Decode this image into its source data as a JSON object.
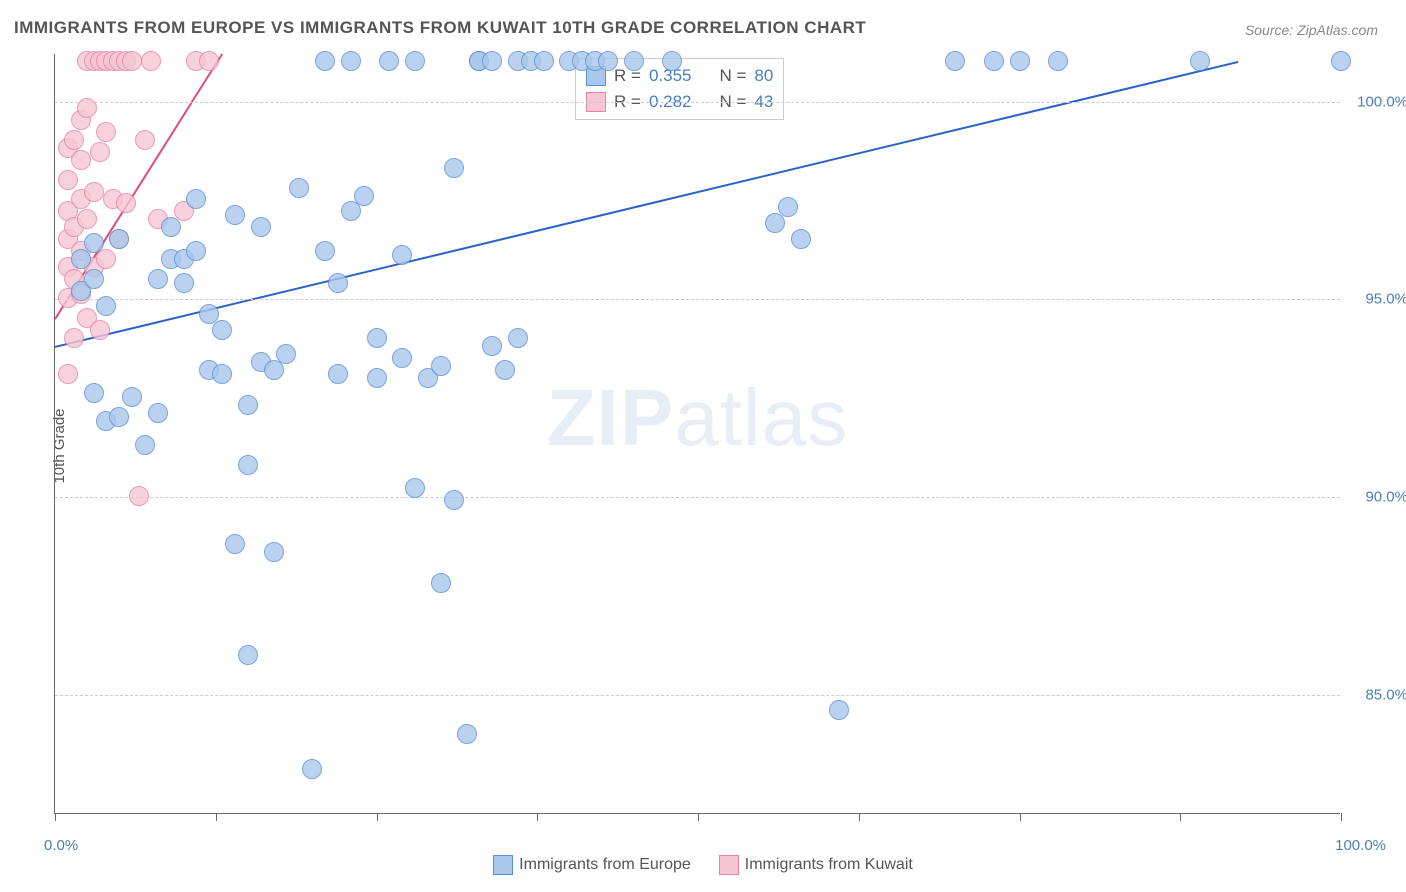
{
  "title": "IMMIGRANTS FROM EUROPE VS IMMIGRANTS FROM KUWAIT 10TH GRADE CORRELATION CHART",
  "source_label": "Source: ",
  "source_name": "ZipAtlas.com",
  "ylabel": "10th Grade",
  "watermark_a": "ZIP",
  "watermark_b": "atlas",
  "chart": {
    "type": "scatter",
    "background_color": "#ffffff",
    "grid_color": "#cccccc",
    "axis_color": "#666666",
    "xlim": [
      0,
      100
    ],
    "ylim": [
      82,
      101.2
    ],
    "x_ticks": [
      0,
      12.5,
      25,
      37.5,
      50,
      62.5,
      75,
      87.5,
      100
    ],
    "x_tick_labels": {
      "0": "0.0%",
      "100": "100.0%"
    },
    "y_ticks": [
      85.0,
      90.0,
      95.0,
      100.0
    ],
    "y_tick_labels": [
      "85.0%",
      "90.0%",
      "95.0%",
      "100.0%"
    ],
    "marker_radius": 10,
    "marker_opacity": 0.35,
    "line_width": 2
  },
  "series": {
    "europe": {
      "label": "Immigrants from Europe",
      "fill_color": "#a9c8ec",
      "stroke_color": "#5b8fd6",
      "line_color": "#2a63c4",
      "R_label": "R = ",
      "R_value": "0.355",
      "N_label": "N = ",
      "N_value": "80",
      "trend": {
        "x1": 0,
        "y1": 93.8,
        "x2": 92,
        "y2": 101.0
      },
      "points": [
        [
          2,
          95.2
        ],
        [
          2,
          96.0
        ],
        [
          3,
          92.6
        ],
        [
          3,
          95.5
        ],
        [
          3,
          96.4
        ],
        [
          4,
          91.9
        ],
        [
          4,
          94.8
        ],
        [
          5,
          92.0
        ],
        [
          8,
          92.1
        ],
        [
          8,
          95.5
        ],
        [
          9,
          96.0
        ],
        [
          9,
          96.8
        ],
        [
          10,
          95.4
        ],
        [
          10,
          96.0
        ],
        [
          11,
          96.2
        ],
        [
          12,
          93.2
        ],
        [
          12,
          94.6
        ],
        [
          13,
          94.2
        ],
        [
          13,
          93.1
        ],
        [
          14,
          97.1
        ],
        [
          15,
          90.8
        ],
        [
          15,
          86.0
        ],
        [
          15,
          92.3
        ],
        [
          16,
          93.4
        ],
        [
          16,
          96.8
        ],
        [
          17,
          93.2
        ],
        [
          17,
          88.6
        ],
        [
          18,
          93.6
        ],
        [
          20,
          83.1
        ],
        [
          21,
          96.2
        ],
        [
          21,
          101.0
        ],
        [
          22,
          95.4
        ],
        [
          22,
          93.1
        ],
        [
          23,
          97.2
        ],
        [
          24,
          97.6
        ],
        [
          25,
          94.0
        ],
        [
          25,
          93.0
        ],
        [
          26,
          101.0
        ],
        [
          27,
          96.1
        ],
        [
          27,
          93.5
        ],
        [
          28,
          90.2
        ],
        [
          28,
          101.0
        ],
        [
          29,
          93.0
        ],
        [
          30,
          93.3
        ],
        [
          30,
          87.8
        ],
        [
          31,
          89.9
        ],
        [
          31,
          98.3
        ],
        [
          32,
          84.0
        ],
        [
          33,
          101.0
        ],
        [
          33,
          101.0
        ],
        [
          34,
          93.8
        ],
        [
          34,
          101.0
        ],
        [
          35,
          93.2
        ],
        [
          36,
          101.0
        ],
        [
          36,
          94.0
        ],
        [
          37,
          101.0
        ],
        [
          38,
          101.0
        ],
        [
          40,
          101.0
        ],
        [
          41,
          101.0
        ],
        [
          42,
          101.0
        ],
        [
          43,
          101.0
        ],
        [
          45,
          101.0
        ],
        [
          56,
          96.9
        ],
        [
          57,
          97.3
        ],
        [
          58,
          96.5
        ],
        [
          61,
          84.6
        ],
        [
          70,
          101.0
        ],
        [
          73,
          101.0
        ],
        [
          75,
          101.0
        ],
        [
          78,
          101.0
        ],
        [
          89,
          101.0
        ],
        [
          100,
          101.0
        ],
        [
          7,
          91.3
        ],
        [
          6,
          92.5
        ],
        [
          19,
          97.8
        ],
        [
          23,
          101.0
        ],
        [
          11,
          97.5
        ],
        [
          14,
          88.8
        ],
        [
          5,
          96.5
        ],
        [
          48,
          101.0
        ]
      ]
    },
    "kuwait": {
      "label": "Immigrants from Kuwait",
      "fill_color": "#f6c6d4",
      "stroke_color": "#e584a5",
      "line_color": "#e14a7a",
      "R_label": "R = ",
      "R_value": "0.282",
      "N_label": "N = ",
      "N_value": "43",
      "trend": {
        "x1": 0,
        "y1": 94.5,
        "x2": 13,
        "y2": 101.2
      },
      "points": [
        [
          1,
          93.1
        ],
        [
          1,
          95.0
        ],
        [
          1,
          95.8
        ],
        [
          1,
          96.5
        ],
        [
          1,
          97.2
        ],
        [
          1,
          98.0
        ],
        [
          1,
          98.8
        ],
        [
          1.5,
          94.0
        ],
        [
          1.5,
          95.5
        ],
        [
          1.5,
          96.8
        ],
        [
          1.5,
          99.0
        ],
        [
          2,
          95.1
        ],
        [
          2,
          96.2
        ],
        [
          2,
          97.5
        ],
        [
          2,
          98.5
        ],
        [
          2,
          99.5
        ],
        [
          2.5,
          94.5
        ],
        [
          2.5,
          97.0
        ],
        [
          2.5,
          99.8
        ],
        [
          2.5,
          101.0
        ],
        [
          3,
          95.8
        ],
        [
          3,
          97.7
        ],
        [
          3,
          101.0
        ],
        [
          3.5,
          94.2
        ],
        [
          3.5,
          98.7
        ],
        [
          3.5,
          101.0
        ],
        [
          4,
          96.0
        ],
        [
          4,
          99.2
        ],
        [
          4,
          101.0
        ],
        [
          4.5,
          97.5
        ],
        [
          4.5,
          101.0
        ],
        [
          5,
          96.5
        ],
        [
          5,
          101.0
        ],
        [
          5.5,
          97.4
        ],
        [
          5.5,
          101.0
        ],
        [
          6,
          101.0
        ],
        [
          6.5,
          90.0
        ],
        [
          7,
          99.0
        ],
        [
          7.5,
          101.0
        ],
        [
          8,
          97.0
        ],
        [
          10,
          97.2
        ],
        [
          11,
          101.0
        ],
        [
          12,
          101.0
        ]
      ]
    }
  },
  "bottom_legend": {
    "items": [
      "europe",
      "kuwait"
    ]
  }
}
